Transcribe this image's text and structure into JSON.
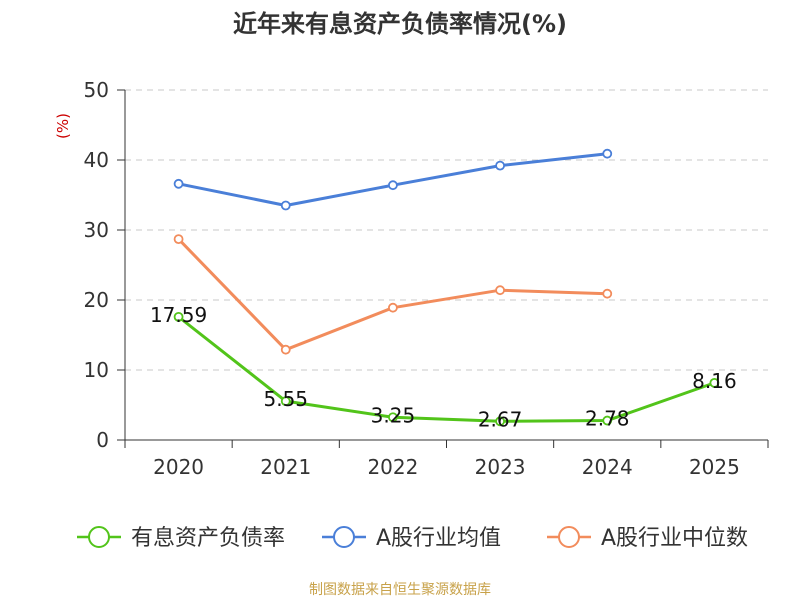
{
  "chart_data": {
    "type": "line",
    "title": "近年来有息资产负债率情况(%)",
    "ylabel": "(%)",
    "xlabel": "",
    "categories": [
      "2020",
      "2021",
      "2022",
      "2023",
      "2024",
      "2025"
    ],
    "ylim": [
      0,
      50
    ],
    "yticks": [
      0,
      10,
      20,
      30,
      40,
      50
    ],
    "grid": true,
    "legend_position": "bottom",
    "series": [
      {
        "name": "有息资产负债率",
        "values": [
          17.59,
          5.55,
          3.25,
          2.67,
          2.78,
          8.16
        ],
        "labels": [
          "17.59",
          "5.55",
          "3.25",
          "2.67",
          "2.78",
          "8.16"
        ],
        "color": "#52c41a"
      },
      {
        "name": "A股行业均值",
        "values": [
          36.6,
          33.5,
          36.4,
          39.2,
          40.9,
          null
        ],
        "color": "#4a7fd8"
      },
      {
        "name": "A股行业中位数",
        "values": [
          28.7,
          12.9,
          18.9,
          21.4,
          20.9,
          null
        ],
        "color": "#f28c5c"
      }
    ],
    "source": "制图数据来自恒生聚源数据库"
  }
}
